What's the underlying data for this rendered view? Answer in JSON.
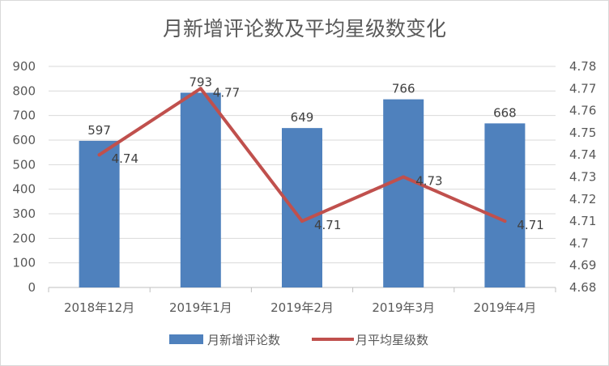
{
  "chart_data": {
    "type": "bar",
    "title": "月新增评论数及平均星级数变化",
    "categories": [
      "2018年12月",
      "2019年1月",
      "2019年2月",
      "2019年3月",
      "2019年4月"
    ],
    "series": [
      {
        "name": "月新增评论数",
        "type": "bar",
        "axis": "left",
        "values": [
          597,
          793,
          649,
          766,
          668
        ],
        "color": "#4f81bd"
      },
      {
        "name": "月平均星级数",
        "type": "line",
        "axis": "right",
        "values": [
          4.74,
          4.77,
          4.71,
          4.73,
          4.71
        ],
        "color": "#c0504d"
      }
    ],
    "y_left": {
      "min": 0,
      "max": 900,
      "step": 100,
      "ticks": [
        "0",
        "100",
        "200",
        "300",
        "400",
        "500",
        "600",
        "700",
        "800",
        "900"
      ]
    },
    "y_right": {
      "min": 4.68,
      "max": 4.78,
      "step": 0.01,
      "ticks": [
        "4.68",
        "4.69",
        "4.7",
        "4.71",
        "4.72",
        "4.73",
        "4.74",
        "4.75",
        "4.76",
        "4.77",
        "4.78"
      ]
    },
    "grid": true,
    "legend": "bottom",
    "xlabel": "",
    "ylabel": ""
  }
}
